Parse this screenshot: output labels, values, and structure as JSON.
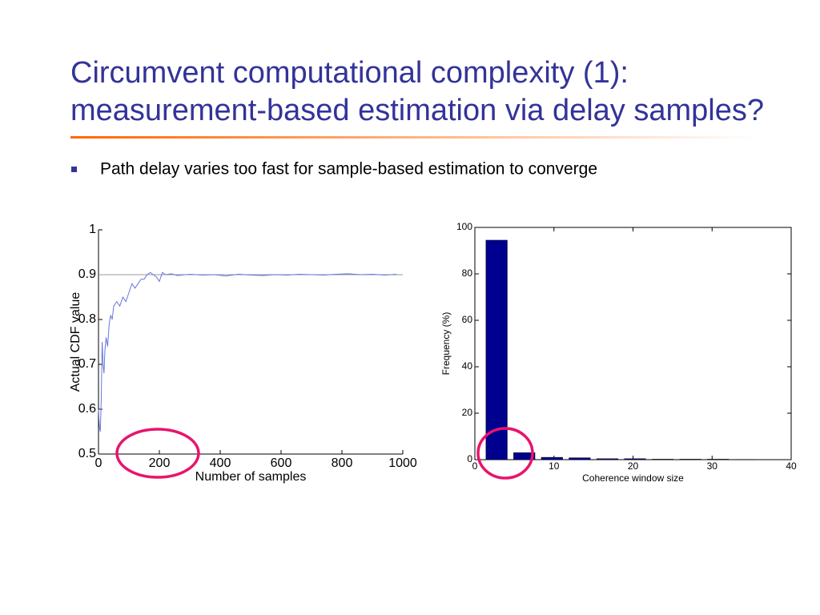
{
  "title": [
    "Circumvent computational complexity (1):",
    "measurement-based estimation via delay samples?"
  ],
  "bullets": [
    "Path delay varies too fast for sample-based estimation to converge"
  ],
  "chart_data": [
    {
      "type": "line",
      "xlabel": "Number of samples",
      "ylabel": "Actual CDF value",
      "xlim": [
        0,
        1000
      ],
      "xticks": [
        0,
        200,
        400,
        600,
        800,
        1000
      ],
      "ylim": [
        0.5,
        1
      ],
      "yticks": [
        0.5,
        0.6,
        0.7,
        0.8,
        0.9,
        1
      ],
      "hline": 0.9,
      "box": false,
      "series": [
        {
          "color": "#6677dd",
          "x": [
            0,
            3,
            6,
            9,
            12,
            15,
            18,
            21,
            25,
            30,
            35,
            40,
            45,
            50,
            60,
            70,
            80,
            90,
            100,
            110,
            120,
            130,
            140,
            150,
            160,
            170,
            180,
            190,
            200,
            210,
            220,
            240,
            260,
            300,
            340,
            380,
            420,
            460,
            500,
            540,
            580,
            620,
            660,
            700,
            740,
            780,
            820,
            860,
            900,
            940,
            980
          ],
          "values": [
            0.6,
            0.56,
            0.55,
            0.62,
            0.75,
            0.7,
            0.68,
            0.73,
            0.76,
            0.74,
            0.79,
            0.81,
            0.8,
            0.83,
            0.84,
            0.83,
            0.85,
            0.84,
            0.86,
            0.88,
            0.87,
            0.88,
            0.89,
            0.89,
            0.9,
            0.905,
            0.9,
            0.895,
            0.885,
            0.905,
            0.9,
            0.902,
            0.898,
            0.901,
            0.899,
            0.9,
            0.897,
            0.901,
            0.899,
            0.898,
            0.9,
            0.899,
            0.901,
            0.9,
            0.899,
            0.901,
            0.902,
            0.9,
            0.901,
            0.899,
            0.901
          ]
        }
      ]
    },
    {
      "type": "bar",
      "xlabel": "Coherence window size",
      "ylabel": "Frequency (%)",
      "xlim": [
        0,
        40
      ],
      "xticks": [
        0,
        10,
        20,
        30,
        40
      ],
      "ylim": [
        0,
        100
      ],
      "yticks": [
        0,
        20,
        40,
        60,
        80,
        100
      ],
      "box": true,
      "series": [
        {
          "color": "#00008f",
          "x": [
            2.75,
            6.25,
            9.75,
            13.25,
            16.75,
            20.25,
            23.75,
            27.25,
            30.75,
            34.25
          ],
          "values": [
            94.5,
            3,
            1,
            0.8,
            0.4,
            0.4,
            0.2,
            0.2,
            0.2,
            0.1
          ]
        }
      ]
    }
  ]
}
